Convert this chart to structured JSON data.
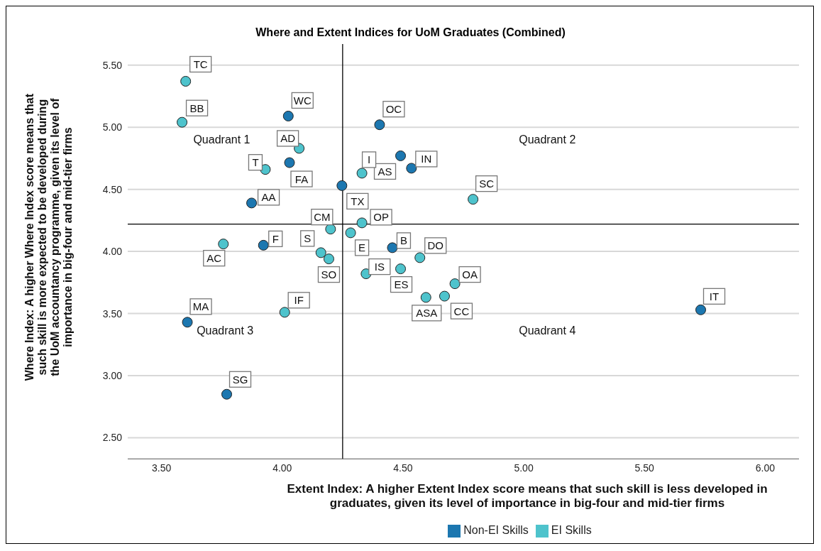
{
  "chart_data": {
    "type": "scatter",
    "title": "Where and Extent Indices for UoM Graduates (Combined)",
    "xlabel": "Extent Index: A higher Extent Index score means that such skill is less developed in graduates, given its level of importance in big-four and mid-tier firms",
    "ylabel": "Where Index: A higher Where Index score means that such skill is more expected to be developed during the UoM accountancy programme, given its level of importance in big-four and mid-tier firms",
    "xlim": [
      3.36,
      6.14
    ],
    "xticks": [
      {
        "value": 3.5,
        "label": "3.50"
      },
      {
        "value": 4,
        "label": "4.00"
      },
      {
        "value": 4.5,
        "label": "4.50"
      },
      {
        "value": 5,
        "label": "5.00"
      },
      {
        "value": 5.5,
        "label": "5.50"
      },
      {
        "value": 6,
        "label": "6.00"
      }
    ],
    "ylim": [
      2.33,
      5.67
    ],
    "yticks": [
      {
        "value": 2.5,
        "label": "2.50"
      },
      {
        "value": 3,
        "label": "3.00"
      },
      {
        "value": 3.5,
        "label": "3.50"
      },
      {
        "value": 4,
        "label": "4.00"
      },
      {
        "value": 4.5,
        "label": "4.50"
      },
      {
        "value": 5,
        "label": "5.00"
      },
      {
        "value": 5.5,
        "label": "5.50"
      }
    ],
    "grid": "y",
    "legend": "bottom",
    "marker": "circle",
    "ref_lines": [
      {
        "axis": "x",
        "value": 4.25,
        "color": "#000000"
      },
      {
        "axis": "y",
        "value": 4.22,
        "color": "#000000"
      }
    ],
    "series": [
      {
        "name": "Non-EI Skills",
        "color": "#1c77b0",
        "x": [
          4.025,
          4.03,
          4.247,
          3.873,
          3.922,
          3.607,
          3.77,
          4.403,
          4.49,
          4.535,
          4.456,
          5.733
        ],
        "values": [
          5.09,
          4.715,
          4.53,
          4.39,
          4.05,
          3.43,
          2.85,
          5.02,
          4.77,
          4.67,
          4.03,
          3.53
        ]
      },
      {
        "name": "EI Skills",
        "color": "#4ec3cc",
        "x": [
          3.6,
          3.585,
          4.07,
          3.93,
          4.2,
          3.756,
          4.16,
          4.193,
          4.01,
          4.33,
          4.79,
          4.33,
          4.283,
          4.57,
          4.347,
          4.49,
          4.715,
          4.595,
          4.672
        ],
        "values": [
          5.37,
          5.04,
          4.83,
          4.66,
          4.18,
          4.06,
          3.99,
          3.94,
          3.51,
          4.63,
          4.42,
          4.23,
          4.15,
          3.95,
          3.82,
          3.86,
          3.74,
          3.63,
          3.64
        ]
      }
    ],
    "annotations": [
      "Quadrant 1",
      "Quadrant 2",
      "Quadrant 3",
      "Quadrant 4",
      {
        "text": "WC",
        "x": 4.025,
        "y": 5.09
      },
      {
        "text": "FA",
        "x": 4.03,
        "y": 4.715
      },
      {
        "text": "TX",
        "x": 4.247,
        "y": 4.53
      },
      {
        "text": "AA",
        "x": 3.873,
        "y": 4.39
      },
      {
        "text": "F",
        "x": 3.922,
        "y": 4.05
      },
      {
        "text": "MA",
        "x": 3.607,
        "y": 3.43
      },
      {
        "text": "SG",
        "x": 3.77,
        "y": 2.85
      },
      {
        "text": "OC",
        "x": 4.403,
        "y": 5.02
      },
      {
        "text": "AS",
        "x": 4.49,
        "y": 4.77
      },
      {
        "text": "IN",
        "x": 4.535,
        "y": 4.67
      },
      {
        "text": "B",
        "x": 4.456,
        "y": 4.03
      },
      {
        "text": "IT",
        "x": 5.733,
        "y": 3.53
      },
      {
        "text": "TC",
        "x": 3.6,
        "y": 5.37
      },
      {
        "text": "BB",
        "x": 3.585,
        "y": 5.04
      },
      {
        "text": "AD",
        "x": 4.07,
        "y": 4.83
      },
      {
        "text": "T",
        "x": 3.93,
        "y": 4.66
      },
      {
        "text": "CM",
        "x": 4.2,
        "y": 4.18
      },
      {
        "text": "AC",
        "x": 3.756,
        "y": 4.06
      },
      {
        "text": "S",
        "x": 4.16,
        "y": 3.99
      },
      {
        "text": "SO",
        "x": 4.193,
        "y": 3.94
      },
      {
        "text": "IF",
        "x": 4.01,
        "y": 3.51
      },
      {
        "text": "I",
        "x": 4.33,
        "y": 4.63
      },
      {
        "text": "SC",
        "x": 4.79,
        "y": 4.42
      },
      {
        "text": "OP",
        "x": 4.33,
        "y": 4.23
      },
      {
        "text": "E",
        "x": 4.283,
        "y": 4.15
      },
      {
        "text": "DO",
        "x": 4.57,
        "y": 3.95
      },
      {
        "text": "IS",
        "x": 4.347,
        "y": 3.82
      },
      {
        "text": "ES",
        "x": 4.49,
        "y": 3.86
      },
      {
        "text": "OA",
        "x": 4.715,
        "y": 3.74
      },
      {
        "text": "ASA",
        "x": 4.595,
        "y": 3.63
      },
      {
        "text": "CC",
        "x": 4.672,
        "y": 3.64
      }
    ]
  }
}
